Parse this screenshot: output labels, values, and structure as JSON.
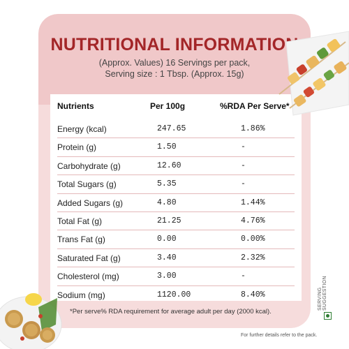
{
  "header": {
    "title": "NUTRITIONAL INFORMATION",
    "subtitle_line1": "(Approx. Values) 16 Servings per pack,",
    "subtitle_line2": "Serving size : 1 Tbsp. (Approx. 15g)"
  },
  "table": {
    "columns": [
      "Nutrients",
      "Per 100g",
      "%RDA Per Serve*"
    ],
    "rows": [
      {
        "nutrient": "Energy (kcal)",
        "per100g": "247.65",
        "rda": "1.86%"
      },
      {
        "nutrient": "Protein (g)",
        "per100g": "1.50",
        "rda": "-"
      },
      {
        "nutrient": "Carbohydrate (g)",
        "per100g": "12.60",
        "rda": "-"
      },
      {
        "nutrient": "Total Sugars (g)",
        "per100g": "5.35",
        "rda": "-"
      },
      {
        "nutrient": "Added Sugars (g)",
        "per100g": "4.80",
        "rda": "1.44%"
      },
      {
        "nutrient": "Total Fat (g)",
        "per100g": "21.25",
        "rda": "4.76%"
      },
      {
        "nutrient": "Trans Fat (g)",
        "per100g": "0.00",
        "rda": "0.00%"
      },
      {
        "nutrient": "Saturated Fat (g)",
        "per100g": "3.40",
        "rda": "2.32%"
      },
      {
        "nutrient": "Cholesterol (mg)",
        "per100g": "3.00",
        "rda": "-"
      },
      {
        "nutrient": "Sodium (mg)",
        "per100g": "1120.00",
        "rda": "8.40%"
      }
    ]
  },
  "footnote": "*Per serve% RDA requirement for average adult per day (2000 kcal).",
  "further_details": "For further details refer to the pack.",
  "serving_suggestion": "SERVING SUGGESTION",
  "colors": {
    "title": "#a32628",
    "header_bg": "#f0c8c9",
    "body_tint": "#f6dcdc",
    "veg_mark": "#2e7d32"
  }
}
